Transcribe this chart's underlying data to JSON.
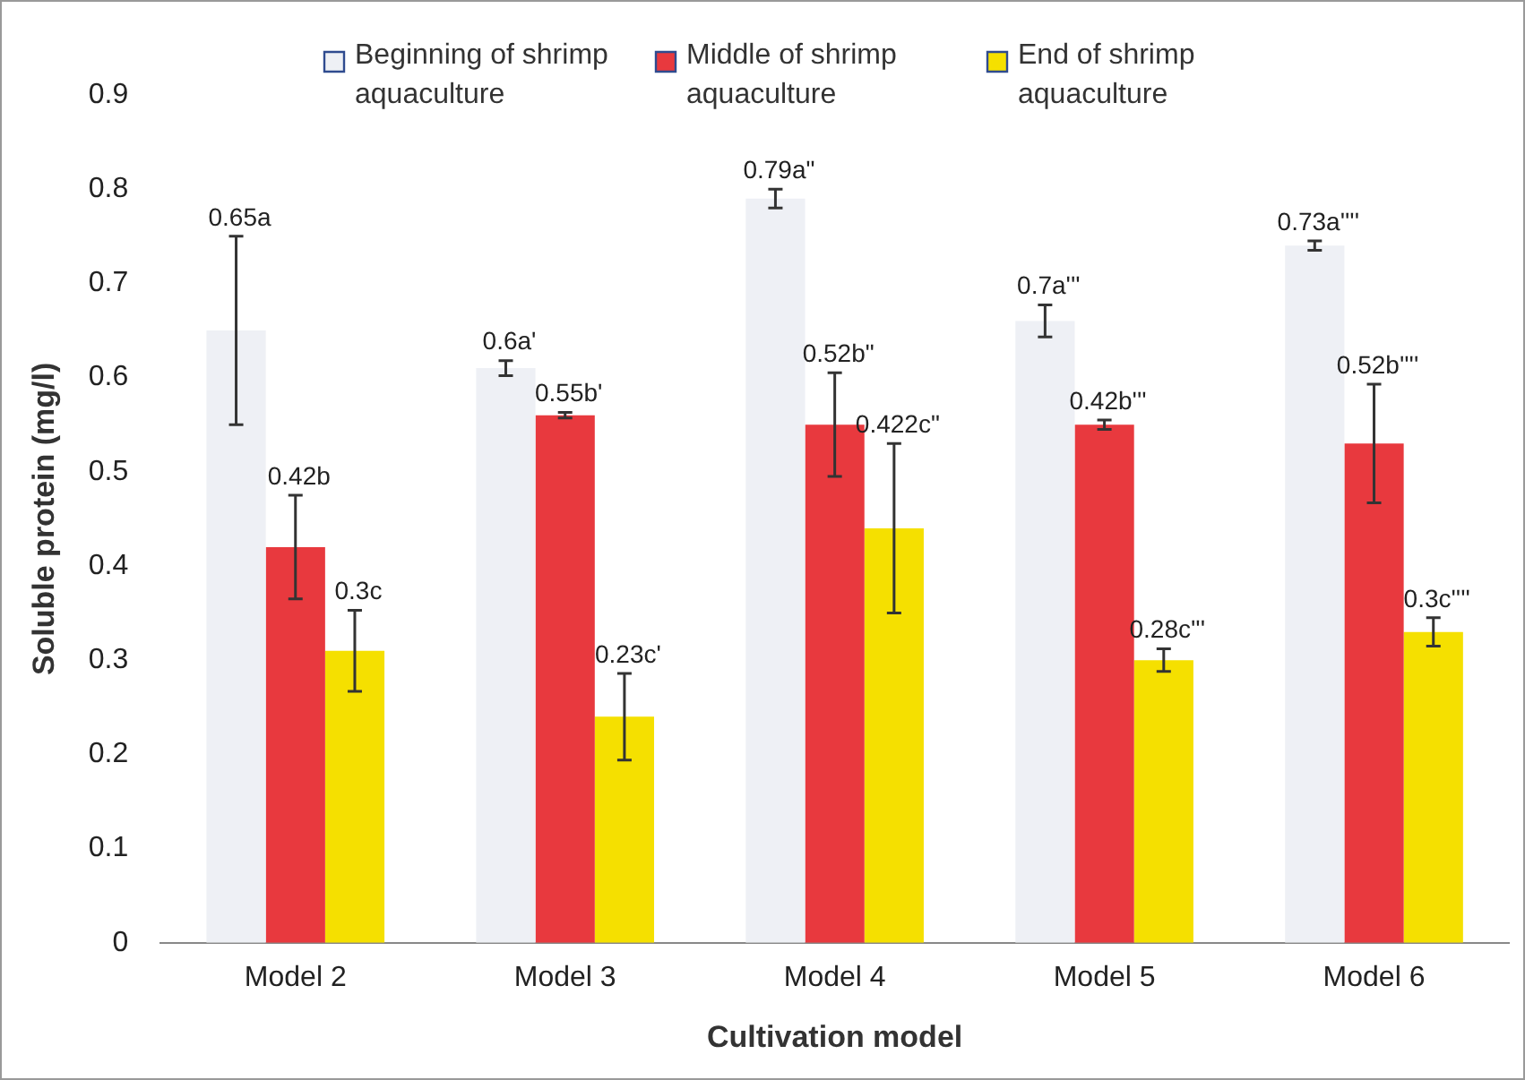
{
  "chart_data": {
    "type": "bar",
    "xlabel": "Cultivation model",
    "ylabel": "Soluble protein (mg/l)",
    "categories": [
      "Model 2",
      "Model 3",
      "Model 4",
      "Model 5",
      "Model 6"
    ],
    "series": [
      {
        "name": "Beginning of shrimp aquaculture",
        "color": "#eef0f5",
        "values": [
          0.65,
          0.61,
          0.79,
          0.66,
          0.74
        ],
        "errors": [
          0.1,
          0.008,
          0.01,
          0.017,
          0.005
        ]
      },
      {
        "name": "Middle of shrimp aquaculture",
        "color": "#e8393e",
        "values": [
          0.42,
          0.56,
          0.55,
          0.55,
          0.53
        ],
        "errors": [
          0.055,
          0.003,
          0.055,
          0.005,
          0.063
        ]
      },
      {
        "name": "End of shrimp aquaculture",
        "color": "#f5e000",
        "values": [
          0.31,
          0.24,
          0.44,
          0.3,
          0.33
        ],
        "errors": [
          0.043,
          0.046,
          0.09,
          0.012,
          0.015
        ]
      }
    ],
    "annotations": [
      "0.65a",
      "0.6a'",
      "0.79a\"",
      "0.7a'''",
      "0.73a''''",
      "0.42b",
      "0.55b'",
      "0.52b\"",
      "0.42b'''",
      "0.52b''''",
      "0.3c",
      "0.23c'",
      "0.422c\"",
      "0.28c'''",
      "0.3c''''"
    ],
    "ylim": [
      0,
      0.9
    ],
    "yticks": [
      0,
      0.1,
      0.2,
      0.3,
      0.4,
      0.5,
      0.6,
      0.7,
      0.8,
      0.9
    ],
    "grid": false,
    "legend": "top"
  }
}
